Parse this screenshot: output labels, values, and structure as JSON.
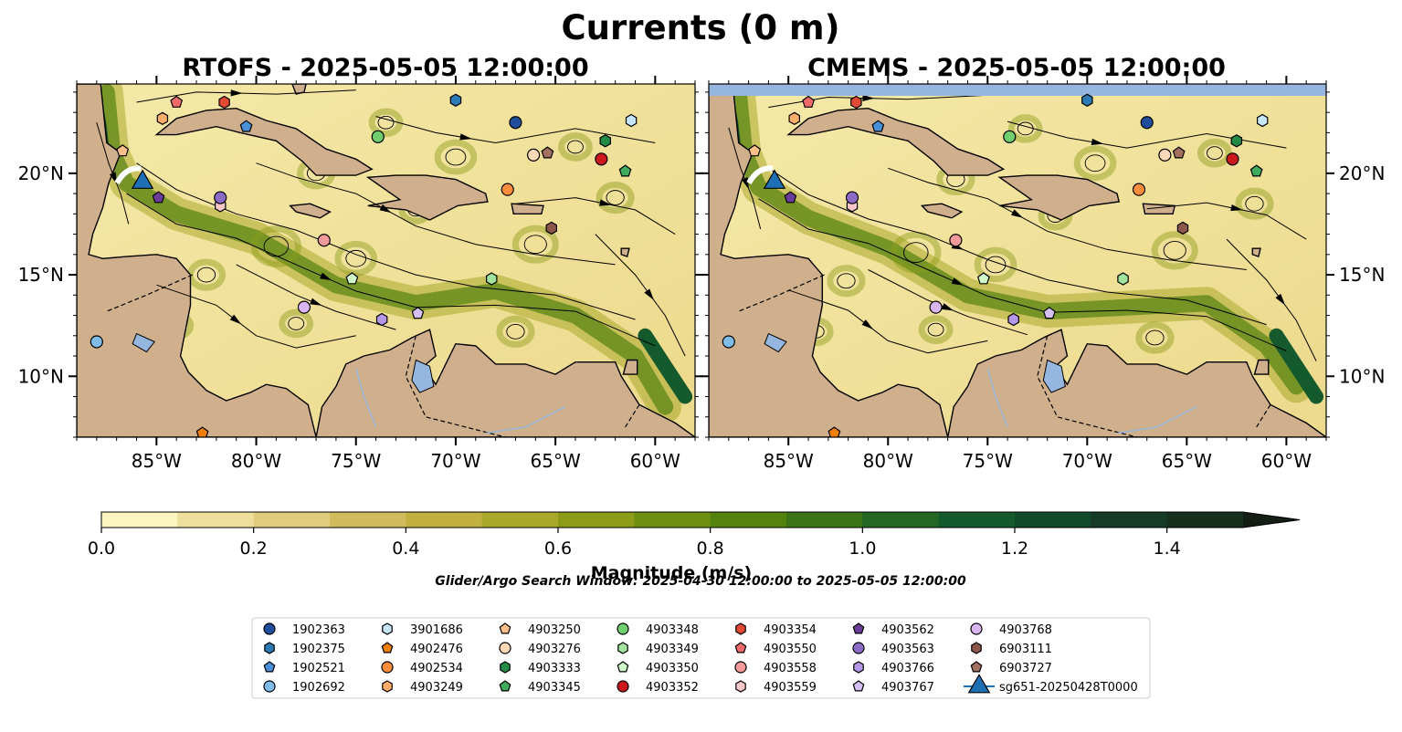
{
  "figure": {
    "suptitle": "Currents (0 m)",
    "search_window": "Glider/Argo Search Window: 2025-04-30 12:00:00 to 2025-05-05 12:00:00"
  },
  "chart_data": {
    "type": "heatmap",
    "panels": [
      {
        "title": "RTOFS - 2025-05-05 12:00:00",
        "model": "RTOFS"
      },
      {
        "title": "CMEMS - 2025-05-05 12:00:00",
        "model": "CMEMS"
      }
    ],
    "xlim": [
      -89,
      -58
    ],
    "ylim": [
      7,
      24.4
    ],
    "lon_ticks": [
      {
        "value": -85,
        "label": "85°W"
      },
      {
        "value": -80,
        "label": "80°W"
      },
      {
        "value": -75,
        "label": "75°W"
      },
      {
        "value": -70,
        "label": "70°W"
      },
      {
        "value": -65,
        "label": "65°W"
      },
      {
        "value": -60,
        "label": "60°W"
      }
    ],
    "lat_ticks": [
      {
        "value": 20,
        "label": "20°N"
      },
      {
        "value": 15,
        "label": "15°N"
      },
      {
        "value": 10,
        "label": "10°N"
      }
    ],
    "colorbar": {
      "label": "Magnitude (m/s)",
      "min": 0.0,
      "max": 1.5,
      "extend": "max",
      "levels": [
        0.0,
        0.1,
        0.2,
        0.3,
        0.4,
        0.5,
        0.6,
        0.7,
        0.8,
        0.9,
        1.0,
        1.1,
        1.2,
        1.3,
        1.4,
        1.5
      ],
      "ticks": [
        {
          "value": 0.0,
          "label": "0.0"
        },
        {
          "value": 0.2,
          "label": "0.2"
        },
        {
          "value": 0.4,
          "label": "0.4"
        },
        {
          "value": 0.6,
          "label": "0.6"
        },
        {
          "value": 0.8,
          "label": "0.8"
        },
        {
          "value": 1.0,
          "label": "1.0"
        },
        {
          "value": 1.2,
          "label": "1.2"
        },
        {
          "value": 1.4,
          "label": "1.4"
        }
      ],
      "colors": [
        "#fdf5c0",
        "#efdf9c",
        "#e1cb7c",
        "#d2bb5c",
        "#c2b03e",
        "#a9a82a",
        "#8c9c18",
        "#6f8f10",
        "#53820f",
        "#3a7414",
        "#246624",
        "#155a2c",
        "#104a2a",
        "#153a25",
        "#16301e"
      ],
      "extend_color": "#141e14"
    },
    "land_color": "#d0b08c",
    "lake_color": "#95b6de",
    "platforms": [
      {
        "id": "1902363",
        "marker": "circle",
        "color": "#1f4e9c",
        "lon": -67.0,
        "lat": 22.5
      },
      {
        "id": "1902375",
        "marker": "hexagon",
        "color": "#2c7bb6",
        "lon": -70.0,
        "lat": 23.6
      },
      {
        "id": "1902521",
        "marker": "pentagon",
        "color": "#4a90d9",
        "lon": -80.5,
        "lat": 22.3
      },
      {
        "id": "1902692",
        "marker": "circle",
        "color": "#7fbde8",
        "lon": -88.0,
        "lat": 11.7
      },
      {
        "id": "3901686",
        "marker": "hexagon",
        "color": "#c6e6fa",
        "lon": -61.2,
        "lat": 22.6
      },
      {
        "id": "4902476",
        "marker": "pentagon",
        "color": "#f07f0c",
        "lon": -82.7,
        "lat": 7.2
      },
      {
        "id": "4902534",
        "marker": "circle",
        "color": "#fd8d3c",
        "lon": -67.4,
        "lat": 19.2
      },
      {
        "id": "4903249",
        "marker": "hexagon",
        "color": "#fdae6b",
        "lon": -84.7,
        "lat": 22.7
      },
      {
        "id": "4903250",
        "marker": "pentagon",
        "color": "#fdc08a",
        "lon": -86.7,
        "lat": 21.1
      },
      {
        "id": "4903276",
        "marker": "circle",
        "color": "#fed9b8",
        "lon": -66.1,
        "lat": 20.9
      },
      {
        "id": "4903333",
        "marker": "hexagon",
        "color": "#238b45",
        "lon": -62.5,
        "lat": 21.6
      },
      {
        "id": "4903345",
        "marker": "pentagon",
        "color": "#41ab5d",
        "lon": -61.5,
        "lat": 20.1
      },
      {
        "id": "4903348",
        "marker": "circle",
        "color": "#6fcf6f",
        "lon": -73.9,
        "lat": 21.8
      },
      {
        "id": "4903349",
        "marker": "hexagon",
        "color": "#a1e29c",
        "lon": -68.2,
        "lat": 14.8
      },
      {
        "id": "4903350",
        "marker": "pentagon",
        "color": "#cff7c9",
        "lon": -75.2,
        "lat": 14.8
      },
      {
        "id": "4903352",
        "marker": "circle",
        "color": "#cb181d",
        "lon": -62.7,
        "lat": 20.7
      },
      {
        "id": "4903354",
        "marker": "hexagon",
        "color": "#e34a33",
        "lon": -81.6,
        "lat": 23.5
      },
      {
        "id": "4903550",
        "marker": "pentagon",
        "color": "#f06a6a",
        "lon": -84.0,
        "lat": 23.5
      },
      {
        "id": "4903558",
        "marker": "circle",
        "color": "#f49a9a",
        "lon": -76.6,
        "lat": 16.7
      },
      {
        "id": "4903559",
        "marker": "hexagon",
        "color": "#fbc6c6",
        "lon": -81.8,
        "lat": 18.4
      },
      {
        "id": "4903562",
        "marker": "pentagon",
        "color": "#6a3d9a",
        "lon": -84.9,
        "lat": 18.8
      },
      {
        "id": "4903563",
        "marker": "circle",
        "color": "#8c6bc7",
        "lon": -81.8,
        "lat": 18.8
      },
      {
        "id": "4903766",
        "marker": "hexagon",
        "color": "#b497e7",
        "lon": -73.7,
        "lat": 12.8
      },
      {
        "id": "4903767",
        "marker": "pentagon",
        "color": "#d4c0f5",
        "lon": -71.9,
        "lat": 13.1
      },
      {
        "id": "4903768",
        "marker": "circle",
        "color": "#d9b6f2",
        "lon": -77.6,
        "lat": 13.4
      },
      {
        "id": "6903111",
        "marker": "hexagon",
        "color": "#8c564b",
        "lon": -65.2,
        "lat": 17.3
      },
      {
        "id": "6903727",
        "marker": "pentagon",
        "color": "#a3705f",
        "lon": -65.4,
        "lat": 21.0
      },
      {
        "id": "sg651-20250428T0000",
        "marker": "triangle",
        "color": "#1f6fb4",
        "lon": -85.7,
        "lat": 19.7
      }
    ]
  }
}
